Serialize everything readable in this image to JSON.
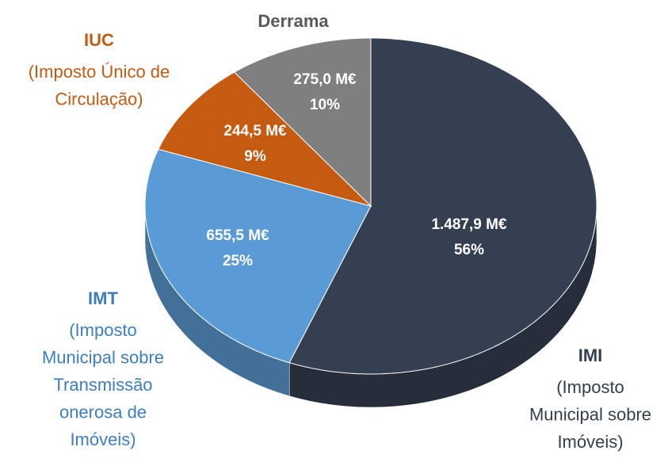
{
  "chart_data": {
    "type": "pie",
    "categories": [
      "IMI",
      "IMT",
      "IUC",
      "Derrama"
    ],
    "descriptions": [
      [
        "(Imposto",
        "Municipal sobre",
        "Imóveis)"
      ],
      [
        "(Imposto",
        "Municipal sobre",
        "Transmissão",
        "onerosa de",
        "Imóveis)"
      ],
      [
        "(Imposto Único de",
        "Circulação)"
      ],
      []
    ],
    "values": [
      1487.9,
      655.5,
      244.5,
      275.0
    ],
    "value_labels": [
      "1.487,9 M€",
      "655,5 M€",
      "244,5 M€",
      "275,0 M€"
    ],
    "percent_labels": [
      "56%",
      "25%",
      "9%",
      "10%"
    ],
    "colors": [
      "#353f52",
      "#5b9bd5",
      "#c55a11",
      "#7f7f7f"
    ],
    "label_colors": [
      "#333f50",
      "#3d7ec0",
      "#c55a11",
      "#595959"
    ]
  }
}
